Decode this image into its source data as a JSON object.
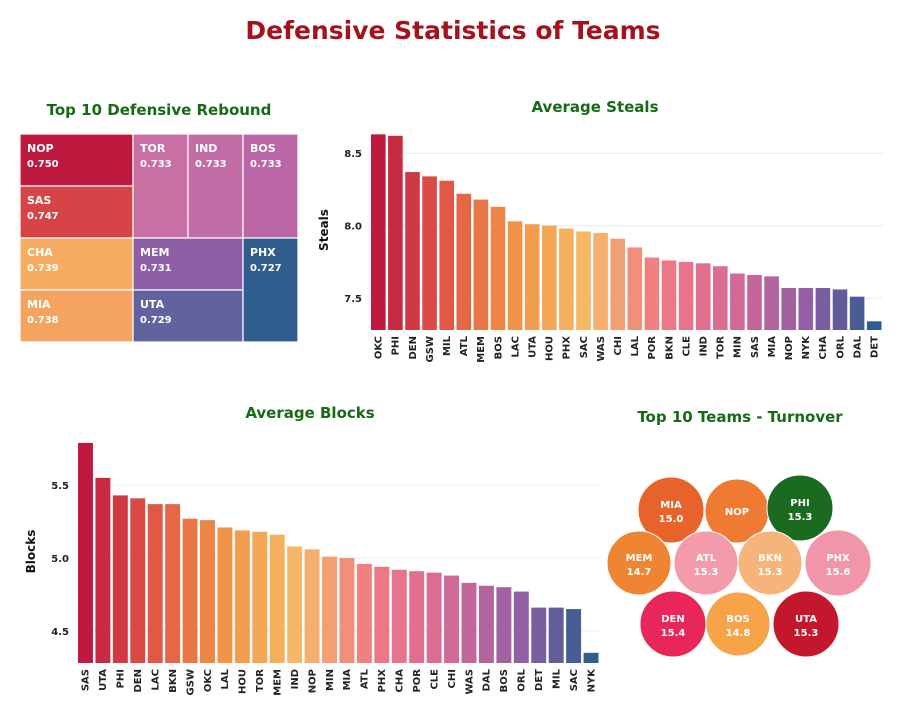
{
  "title": "Defensive Statistics of Teams",
  "chart_data": [
    {
      "type": "treemap",
      "title": "Top 10 Defensive Rebound",
      "items": [
        {
          "team": "NOP",
          "value": "0.750",
          "color": "#be1a3f"
        },
        {
          "team": "SAS",
          "value": "0.747",
          "color": "#d64447"
        },
        {
          "team": "CHA",
          "value": "0.739",
          "color": "#f6ad63"
        },
        {
          "team": "MIA",
          "value": "0.738",
          "color": "#f4a361"
        },
        {
          "team": "TOR",
          "value": "0.733",
          "color": "#c870a3"
        },
        {
          "team": "IND",
          "value": "0.733",
          "color": "#c26ca5"
        },
        {
          "team": "BOS",
          "value": "0.733",
          "color": "#bb67a7"
        },
        {
          "team": "MEM",
          "value": "0.731",
          "color": "#8e5ea6"
        },
        {
          "team": "UTA",
          "value": "0.729",
          "color": "#61639e"
        },
        {
          "team": "PHX",
          "value": "0.727",
          "color": "#2f5d8e"
        }
      ]
    },
    {
      "type": "bar",
      "title": "Average Steals",
      "ylabel": "Steals",
      "ylim": [
        7.28,
        8.66
      ],
      "yticks": [
        "7.5",
        "8.0",
        "8.5"
      ],
      "categories": [
        "OKC",
        "PHI",
        "DEN",
        "GSW",
        "MIL",
        "ATL",
        "MEM",
        "BOS",
        "LAC",
        "UTA",
        "HOU",
        "PHX",
        "SAC",
        "WAS",
        "CHI",
        "LAL",
        "POR",
        "BKN",
        "CLE",
        "IND",
        "TOR",
        "MIN",
        "SAS",
        "MIA",
        "NOP",
        "NYK",
        "CHA",
        "ORL",
        "DAL",
        "DET"
      ],
      "values": [
        8.63,
        8.62,
        8.37,
        8.34,
        8.31,
        8.22,
        8.18,
        8.13,
        8.03,
        8.01,
        8.0,
        7.98,
        7.96,
        7.95,
        7.91,
        7.85,
        7.78,
        7.76,
        7.75,
        7.74,
        7.72,
        7.67,
        7.66,
        7.65,
        7.57,
        7.57,
        7.57,
        7.56,
        7.51,
        7.34
      ]
    },
    {
      "type": "bar",
      "title": "Average Blocks",
      "ylabel": "Blocks",
      "ylim": [
        4.28,
        5.81
      ],
      "yticks": [
        "4.5",
        "5.0",
        "5.5"
      ],
      "categories": [
        "SAS",
        "UTA",
        "PHI",
        "DEN",
        "LAC",
        "BKN",
        "GSW",
        "OKC",
        "LAL",
        "HOU",
        "TOR",
        "MEM",
        "IND",
        "NOP",
        "MIN",
        "MIA",
        "ATL",
        "PHX",
        "CHA",
        "POR",
        "CLE",
        "CHI",
        "WAS",
        "DAL",
        "BOS",
        "ORL",
        "DET",
        "MIL",
        "SAC",
        "NYK"
      ],
      "values": [
        5.79,
        5.55,
        5.43,
        5.41,
        5.37,
        5.37,
        5.27,
        5.26,
        5.21,
        5.19,
        5.18,
        5.16,
        5.08,
        5.06,
        5.01,
        5.0,
        4.96,
        4.94,
        4.92,
        4.91,
        4.9,
        4.88,
        4.83,
        4.81,
        4.8,
        4.77,
        4.66,
        4.66,
        4.65,
        4.35
      ]
    },
    {
      "type": "bubble",
      "title": "Top 10 Teams - Turnover",
      "items": [
        {
          "team": "MIA",
          "value": "15.0",
          "color": "#e8632c"
        },
        {
          "team": "NOP",
          "value": "",
          "color": "#ef7a32"
        },
        {
          "team": "PHI",
          "value": "15.3",
          "color": "#1a6b1f"
        },
        {
          "team": "MEM",
          "value": "14.7",
          "color": "#ef8432"
        },
        {
          "team": "ATL",
          "value": "15.3",
          "color": "#f39bab"
        },
        {
          "team": "BKN",
          "value": "15.3",
          "color": "#f6b37a"
        },
        {
          "team": "PHX",
          "value": "15.6",
          "color": "#f195ab"
        },
        {
          "team": "DEN",
          "value": "15.4",
          "color": "#e8265a"
        },
        {
          "team": "BOS",
          "value": "14.8",
          "color": "#f6a447"
        },
        {
          "team": "UTA",
          "value": "15.3",
          "color": "#c4162c"
        }
      ]
    }
  ]
}
